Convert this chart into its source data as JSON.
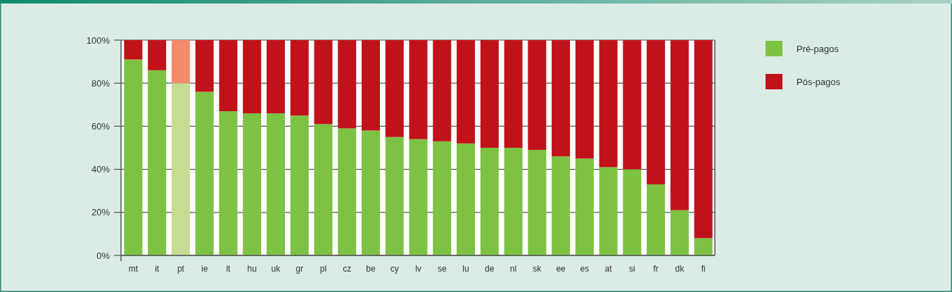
{
  "chart_data": {
    "type": "bar",
    "stacked": true,
    "categories": [
      "mt",
      "it",
      "pt",
      "ie",
      "lt",
      "hu",
      "uk",
      "gr",
      "pl",
      "cz",
      "be",
      "cy",
      "lv",
      "se",
      "lu",
      "de",
      "nl",
      "sk",
      "ee",
      "es",
      "at",
      "si",
      "fr",
      "dk",
      "fi"
    ],
    "series": [
      {
        "name": "Pré-pagos",
        "color": "#7dc242",
        "colors": [
          "#7dc242",
          "#7dc242",
          "#c5dd93",
          "#7dc242",
          "#7dc242",
          "#7dc242",
          "#7dc242",
          "#7dc242",
          "#7dc242",
          "#7dc242",
          "#7dc242",
          "#7dc242",
          "#7dc242",
          "#7dc242",
          "#7dc242",
          "#7dc242",
          "#7dc242",
          "#7dc242",
          "#7dc242",
          "#7dc242",
          "#7dc242",
          "#7dc242",
          "#7dc242",
          "#7dc242",
          "#7dc242"
        ],
        "values": [
          91,
          86,
          80,
          76,
          67,
          66,
          66,
          65,
          61,
          59,
          58,
          55,
          54,
          53,
          52,
          50,
          50,
          49,
          46,
          45,
          41,
          40,
          33,
          21,
          8
        ]
      },
      {
        "name": "Pós-pagos",
        "color": "#c1121a",
        "colors": [
          "#c1121a",
          "#c1121a",
          "#f4896b",
          "#c1121a",
          "#c1121a",
          "#c1121a",
          "#c1121a",
          "#c1121a",
          "#c1121a",
          "#c1121a",
          "#c1121a",
          "#c1121a",
          "#c1121a",
          "#c1121a",
          "#c1121a",
          "#c1121a",
          "#c1121a",
          "#c1121a",
          "#c1121a",
          "#c1121a",
          "#c1121a",
          "#c1121a",
          "#c1121a",
          "#c1121a",
          "#c1121a"
        ],
        "values": [
          9,
          14,
          20,
          24,
          33,
          34,
          34,
          35,
          39,
          41,
          42,
          45,
          46,
          47,
          48,
          50,
          50,
          51,
          54,
          55,
          59,
          60,
          67,
          79,
          92
        ]
      }
    ],
    "ylim": [
      0,
      100
    ],
    "yticks": [
      {
        "value": 0,
        "label": "0%"
      },
      {
        "value": 20,
        "label": "20%"
      },
      {
        "value": 40,
        "label": "40%"
      },
      {
        "value": 60,
        "label": "60%"
      },
      {
        "value": 80,
        "label": "80%"
      },
      {
        "value": 100,
        "label": "100%"
      }
    ],
    "grid": "y",
    "legend": "top right"
  }
}
